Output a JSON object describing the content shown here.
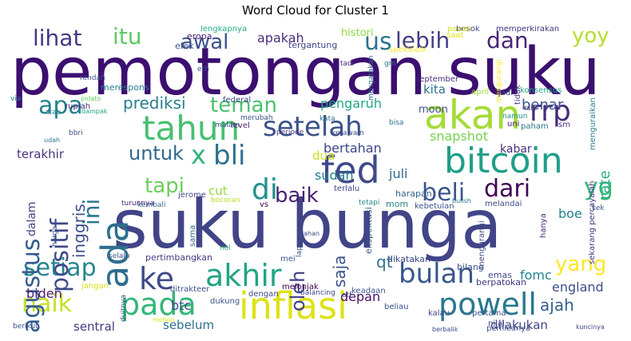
{
  "chart_data": {
    "type": "wordcloud",
    "title": "Word Cloud for Cluster 1",
    "words": [
      {
        "text": "pemotongan suku",
        "color": "#3b0f70"
      },
      {
        "text": "suku bunga",
        "color": "#414487"
      },
      {
        "text": "fed",
        "color": "#3e4a89"
      },
      {
        "text": "akan",
        "color": "#a5db36"
      },
      {
        "text": "bitcoin",
        "color": "#1f9e89"
      },
      {
        "text": "inflasi",
        "color": "#dde318"
      },
      {
        "text": "tahun",
        "color": "#46c06f"
      },
      {
        "text": "setelah",
        "color": "#3b528b"
      },
      {
        "text": "ada",
        "color": "#2e6e8e"
      },
      {
        "text": "powell",
        "color": "#2a788e"
      },
      {
        "text": "pada",
        "color": "#34b679"
      },
      {
        "text": "akhir",
        "color": "#21a585"
      },
      {
        "text": "bulan",
        "color": "#38588c"
      },
      {
        "text": "ke",
        "color": "#3e4a89"
      },
      {
        "text": "setiap",
        "color": "#23888e"
      },
      {
        "text": "naik",
        "color": "#c5e021"
      },
      {
        "text": "lihat",
        "color": "#453882"
      },
      {
        "text": "itu",
        "color": "#5ec962"
      },
      {
        "text": "awal",
        "color": "#3b528b"
      },
      {
        "text": "us",
        "color": "#2c728e"
      },
      {
        "text": "lebih",
        "color": "#433e85"
      },
      {
        "text": "dan",
        "color": "#482576"
      },
      {
        "text": "yoy",
        "color": "#b5de2b"
      },
      {
        "text": "apa",
        "color": "#26828e"
      },
      {
        "text": "rrp",
        "color": "#472c7a"
      },
      {
        "text": "x",
        "color": "#2fb47c"
      },
      {
        "text": "bli",
        "color": "#2d708e"
      },
      {
        "text": "di",
        "color": "#21918c"
      },
      {
        "text": "baik",
        "color": "#482173"
      },
      {
        "text": "beli",
        "color": "#3a548c"
      },
      {
        "text": "dari",
        "color": "#440154"
      },
      {
        "text": "yg",
        "color": "#35b779"
      },
      {
        "text": "tapi",
        "color": "#6ccd5a"
      },
      {
        "text": "untuk",
        "color": "#31688e"
      },
      {
        "text": "ini",
        "color": "#2a788e"
      },
      {
        "text": "positif",
        "color": "#3f4889"
      },
      {
        "text": "agustus",
        "color": "#365d8d"
      },
      {
        "text": "yang",
        "color": "#fde725"
      },
      {
        "text": "oleh",
        "color": "#424086"
      },
      {
        "text": "saja",
        "color": "#3b528b"
      },
      {
        "text": "qt",
        "color": "#2c728e"
      },
      {
        "text": "teman",
        "color": "#4ac16d"
      },
      {
        "text": "prediksi",
        "color": "#287d8e"
      },
      {
        "text": "apakah",
        "color": "#472c7a"
      },
      {
        "text": "pengaruh",
        "color": "#22a785"
      },
      {
        "text": "benar",
        "color": "#3a538b"
      },
      {
        "text": "bertahan",
        "color": "#3f4788"
      },
      {
        "text": "snapshot",
        "color": "#7ad151"
      },
      {
        "text": "kabar",
        "color": "#472f7d"
      },
      {
        "text": "juli",
        "color": "#31688e"
      },
      {
        "text": "sudah",
        "color": "#277f8e"
      },
      {
        "text": "dua",
        "color": "#c8e020"
      },
      {
        "text": "cut",
        "color": "#95d840"
      },
      {
        "text": "inggris",
        "color": "#3d4e8a"
      },
      {
        "text": "terakhir",
        "color": "#453781"
      },
      {
        "text": "kita",
        "color": "#2c728e"
      },
      {
        "text": "moon",
        "color": "#3c4f8a"
      },
      {
        "text": "boe",
        "color": "#26828e"
      },
      {
        "text": "rate",
        "color": "#29af7f"
      },
      {
        "text": "fomc",
        "color": "#25848e"
      },
      {
        "text": "england",
        "color": "#3d4d8a"
      },
      {
        "text": "ajah",
        "color": "#355f8d"
      },
      {
        "text": "biden",
        "color": "#481c6e"
      },
      {
        "text": "depan",
        "color": "#471063"
      },
      {
        "text": "btc",
        "color": "#3e4c8a"
      },
      {
        "text": "sentral",
        "color": "#453882"
      },
      {
        "text": "sebelum",
        "color": "#2d708e"
      },
      {
        "text": "dilakukan",
        "color": "#404688"
      },
      {
        "text": "dalam",
        "color": "#3f4788"
      },
      {
        "text": "histori",
        "color": "#8fd744"
      },
      {
        "text": "tergantung",
        "color": "#404588"
      },
      {
        "text": "eropa",
        "color": "#482475"
      },
      {
        "text": "efek",
        "color": "#3b528b"
      },
      {
        "text": "lengkapnya",
        "color": "#25ab82"
      },
      {
        "text": "spekulasi",
        "color": "#fde725"
      },
      {
        "text": "memperkirakan",
        "color": "#46337e"
      },
      {
        "text": "besok",
        "color": "#404688"
      },
      {
        "text": "pause",
        "color": "#d2e21b"
      },
      {
        "text": "saat",
        "color": "#dde318"
      },
      {
        "text": "tadi",
        "color": "#482576"
      },
      {
        "text": "gm",
        "color": "#2a788e"
      },
      {
        "text": "mengatakan",
        "color": "#31688e"
      },
      {
        "text": "eth",
        "color": "#3b528b"
      },
      {
        "text": "september",
        "color": "#472c7a"
      },
      {
        "text": "mengurangi",
        "color": "#fde725"
      },
      {
        "text": "tidak",
        "color": "#433e85"
      },
      {
        "text": "konsensus",
        "color": "#22a785"
      },
      {
        "text": "jadi",
        "color": "#3f4788"
      },
      {
        "text": "april",
        "color": "#a0da39"
      },
      {
        "text": "rendah",
        "color": "#3b528b"
      },
      {
        "text": "via",
        "color": "#2a788e"
      },
      {
        "text": "merespons",
        "color": "#287c8e"
      },
      {
        "text": "pidato",
        "color": "#63cb5f"
      },
      {
        "text": "rupiah",
        "color": "#482878"
      },
      {
        "text": "dampak",
        "color": "#20a486"
      },
      {
        "text": "atau",
        "color": "#26828e"
      },
      {
        "text": "federal",
        "color": "#3f4788"
      },
      {
        "text": "merubah",
        "color": "#3b528b"
      },
      {
        "text": "kata",
        "color": "#2c728e"
      },
      {
        "text": "bisa",
        "color": "#2d708e"
      },
      {
        "text": "rsi",
        "color": "#482475"
      },
      {
        "text": "namun",
        "color": "#21918c"
      },
      {
        "text": "uni",
        "color": "#481b6d"
      },
      {
        "text": "paham",
        "color": "#2a788e"
      },
      {
        "text": "sm",
        "color": "#472d7b"
      },
      {
        "text": "menguraikan",
        "color": "#287c8e"
      },
      {
        "text": "malam",
        "color": "#3b528b"
      },
      {
        "text": "level",
        "color": "#481f70"
      },
      {
        "text": "ketawain",
        "color": "#3e4a89"
      },
      {
        "text": "periode",
        "color": "#443983"
      },
      {
        "text": "bbri",
        "color": "#3b528b"
      },
      {
        "text": "udah",
        "color": "#2c728e"
      },
      {
        "text": "jerome",
        "color": "#3f4788"
      },
      {
        "text": "bocoran",
        "color": "#b8de29"
      },
      {
        "text": "terlalu",
        "color": "#3e4989"
      },
      {
        "text": "bulish",
        "color": "#2c728e"
      },
      {
        "text": "harapan",
        "color": "#32658e"
      },
      {
        "text": "kebetulan",
        "color": "#3b528b"
      },
      {
        "text": "melandai",
        "color": "#3f4889"
      },
      {
        "text": "kembali",
        "color": "#306a8e"
      },
      {
        "text": "turunnya",
        "color": "#482475"
      },
      {
        "text": "vs",
        "color": "#440154"
      },
      {
        "text": "tetapi",
        "color": "#23898e"
      },
      {
        "text": "mom",
        "color": "#25848e"
      },
      {
        "text": "ekspektasi",
        "color": "#3b528b"
      },
      {
        "text": "mengurangi",
        "color": "#3f4788"
      },
      {
        "text": "kek",
        "color": "#3b528b"
      },
      {
        "text": "hanya",
        "color": "#482878"
      },
      {
        "text": "sekarang percayalah",
        "color": "#453781"
      },
      {
        "text": "harga",
        "color": "#3b528b"
      },
      {
        "text": "sama",
        "color": "#31688e"
      },
      {
        "text": "laporan",
        "color": "#3b528b"
      },
      {
        "text": "tahan",
        "color": "#3f4788"
      },
      {
        "text": "nol",
        "color": "#2fb47c"
      },
      {
        "text": "selalu",
        "color": "#3b528b"
      },
      {
        "text": "pertimbangkan",
        "color": "#433e85"
      },
      {
        "text": "mei",
        "color": "#3b528b"
      },
      {
        "text": "dikatakan",
        "color": "#3f4788"
      },
      {
        "text": "bilang",
        "color": "#3b528b"
      },
      {
        "text": "emas",
        "color": "#3f4788"
      },
      {
        "text": "berpatokan",
        "color": "#453781"
      },
      {
        "text": "jangan",
        "color": "#d8e219"
      },
      {
        "text": "balancing",
        "color": "#3f4788"
      },
      {
        "text": "melonjak",
        "color": "#440154"
      },
      {
        "text": "ditrakteer",
        "color": "#3b528b"
      },
      {
        "text": "dengan",
        "color": "#3f4788"
      },
      {
        "text": "etf",
        "color": "#3f4788"
      },
      {
        "text": "keadaan",
        "color": "#3b528b"
      },
      {
        "text": "beliau",
        "color": "#3b528b"
      },
      {
        "text": "kalau",
        "color": "#3f4788"
      },
      {
        "text": "pertama",
        "color": "#3b528b"
      },
      {
        "text": "nilai",
        "color": "#3f4788"
      },
      {
        "text": "duitnya",
        "color": "#3b528b"
      },
      {
        "text": "dukung",
        "color": "#3b528b"
      },
      {
        "text": "berikut",
        "color": "#3b528b"
      },
      {
        "text": "mohon",
        "color": "#d8e219"
      },
      {
        "text": "berbalik",
        "color": "#3f4788"
      },
      {
        "text": "pemicunya",
        "color": "#3b528b"
      },
      {
        "text": "kuncinya",
        "color": "#3f4788"
      }
    ]
  }
}
